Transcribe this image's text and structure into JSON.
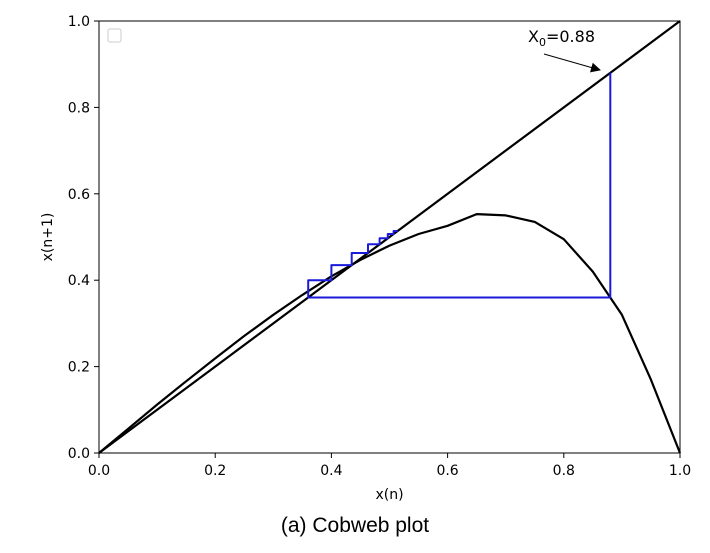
{
  "caption": "(a)  Cobweb plot",
  "chart_data": {
    "type": "line",
    "title": "",
    "xlabel": "x(n)",
    "ylabel": "x(n+1)",
    "xlim": [
      0.0,
      1.0
    ],
    "ylim": [
      0.0,
      1.0
    ],
    "xticks": [
      "0.0",
      "0.2",
      "0.4",
      "0.6",
      "0.8",
      "1.0"
    ],
    "yticks": [
      "0.0",
      "0.2",
      "0.4",
      "0.6",
      "0.8",
      "1.0"
    ],
    "grid": false,
    "legend": "top-left (empty)",
    "colors": {
      "curve": "#000000",
      "identity": "#000000",
      "cobweb": "#1a1adb"
    },
    "annotation": {
      "text_main": "X",
      "text_sub": "0",
      "text_rest": "=0.88",
      "x": 0.88,
      "y": 0.88
    },
    "series": [
      {
        "kind": "curve",
        "x": [
          0.0,
          0.05,
          0.1,
          0.15,
          0.2,
          0.25,
          0.3,
          0.35,
          0.4,
          0.45,
          0.5,
          0.55,
          0.6,
          0.65,
          0.7,
          0.75,
          0.8,
          0.85,
          0.9,
          0.95,
          1.0
        ],
        "y": [
          0.0,
          0.056,
          0.112,
          0.166,
          0.219,
          0.271,
          0.32,
          0.366,
          0.409,
          0.447,
          0.48,
          0.507,
          0.526,
          0.553,
          0.55,
          0.535,
          0.495,
          0.42,
          0.32,
          0.17,
          0.0
        ]
      },
      {
        "kind": "identity",
        "x": [
          0.0,
          1.0
        ],
        "y": [
          0.0,
          1.0
        ]
      },
      {
        "kind": "cobweb",
        "x": [
          0.88,
          0.88,
          0.36,
          0.36,
          0.4,
          0.4,
          0.435,
          0.435,
          0.463,
          0.463,
          0.483,
          0.483,
          0.497,
          0.497,
          0.507,
          0.507,
          0.514
        ],
        "y": [
          0.88,
          0.36,
          0.36,
          0.4,
          0.4,
          0.435,
          0.435,
          0.463,
          0.463,
          0.483,
          0.483,
          0.497,
          0.497,
          0.507,
          0.507,
          0.514,
          0.514
        ]
      }
    ]
  }
}
